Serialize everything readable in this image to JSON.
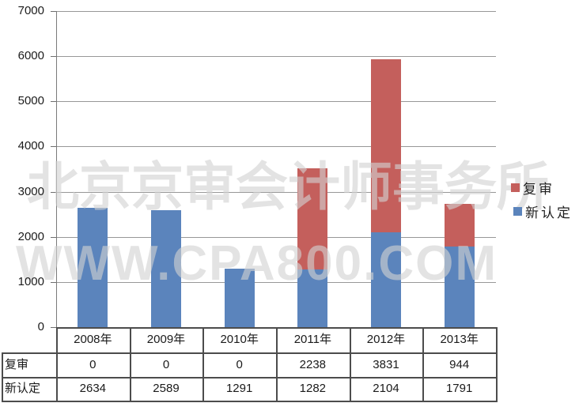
{
  "chart_data": {
    "type": "bar",
    "stacked": true,
    "title": "",
    "xlabel": "",
    "ylabel": "",
    "categories": [
      "2008年",
      "2009年",
      "2010年",
      "2011年",
      "2012年",
      "2013年"
    ],
    "series": [
      {
        "name": "复审",
        "color": "#c45f5c",
        "values": [
          0,
          0,
          0,
          2238,
          3831,
          944
        ]
      },
      {
        "name": "新认定",
        "color": "#5b84bc",
        "values": [
          2634,
          2589,
          1291,
          1282,
          2104,
          1791
        ]
      }
    ],
    "ylim": [
      0,
      7000
    ],
    "ytick_step": 1000,
    "ytick_labels": [
      "0",
      "1000",
      "2000",
      "3000",
      "4000",
      "5000",
      "6000",
      "7000"
    ],
    "grid": true,
    "legend_position": "right",
    "data_table_shown": true
  },
  "watermark": {
    "line1": "北京京审会计师事务所",
    "line2": "WWW.CPA800.COM"
  },
  "colors": {
    "series_review": "#c45f5c",
    "series_new": "#5b84bc",
    "gridline": "#989898",
    "table_border": "#4c4c4c",
    "text": "#1a1a1a",
    "background": "#ffffff"
  }
}
